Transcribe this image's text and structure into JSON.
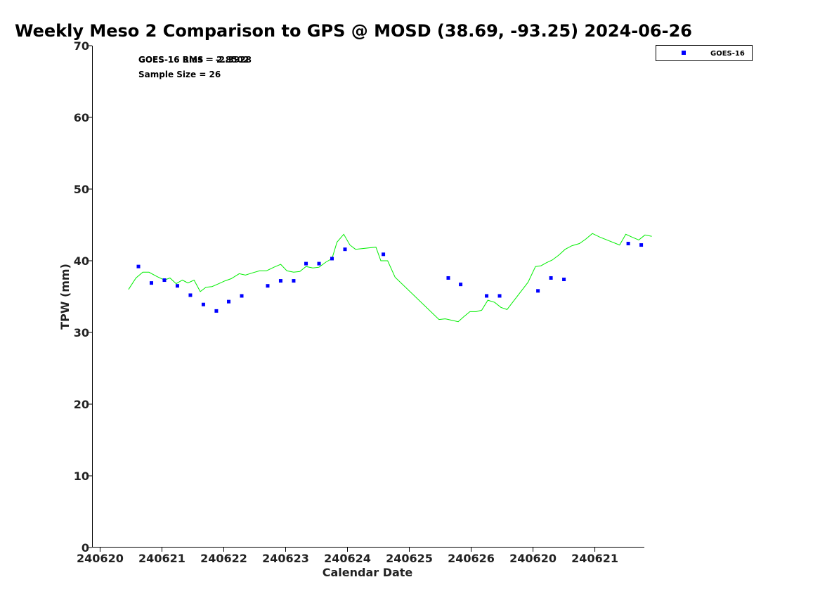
{
  "chart_data": {
    "type": "scatter",
    "title": "Weekly Meso 2 Comparison to GPS @ MOSD (38.69, -93.25) 2024-06-26",
    "xlabel": "Calendar Date",
    "ylabel": "TPW (mm)",
    "ylim": [
      0,
      70
    ],
    "xlim": [
      -0.13,
      8.8
    ],
    "yticks": [
      0,
      10,
      20,
      30,
      40,
      50,
      60,
      70
    ],
    "xticks": [
      {
        "x": 0,
        "label": "240620"
      },
      {
        "x": 1,
        "label": "240621"
      },
      {
        "x": 2,
        "label": "240622"
      },
      {
        "x": 3,
        "label": "240623"
      },
      {
        "x": 4,
        "label": "240624"
      },
      {
        "x": 5,
        "label": "240625"
      },
      {
        "x": 6,
        "label": "240626"
      },
      {
        "x": 7,
        "label": "240620"
      },
      {
        "x": 8,
        "label": "240621"
      }
    ],
    "grid": false,
    "legend_position": "top-right",
    "annotations": {
      "stat_line_a": "GOES-16 Bias = -2.3928",
      "stat_line_b": "GOES-16 RMS = 2.8502",
      "sample_size": "Sample Size = 26"
    },
    "series": [
      {
        "name": "GOES-16",
        "kind": "scatter",
        "color": "#0000ff",
        "x": [
          0.62,
          0.83,
          1.04,
          1.25,
          1.46,
          1.67,
          1.88,
          2.08,
          2.29,
          2.71,
          2.92,
          3.13,
          3.33,
          3.54,
          3.75,
          3.96,
          4.58,
          5.63,
          5.83,
          6.25,
          6.46,
          7.08,
          7.29,
          7.5,
          8.54,
          8.75
        ],
        "y": [
          39.2,
          36.9,
          37.3,
          36.5,
          35.2,
          33.9,
          33.0,
          34.3,
          35.1,
          36.5,
          37.2,
          37.2,
          39.6,
          39.6,
          40.3,
          41.6,
          40.9,
          37.6,
          36.7,
          35.1,
          35.1,
          35.8,
          37.6,
          37.4,
          42.4,
          42.2
        ]
      },
      {
        "kind": "line",
        "color": "#00ee00",
        "x": [
          0.46,
          0.58,
          0.69,
          0.79,
          0.92,
          1.04,
          1.13,
          1.23,
          1.33,
          1.42,
          1.52,
          1.62,
          1.71,
          1.81,
          1.92,
          2.02,
          2.12,
          2.25,
          2.35,
          2.46,
          2.58,
          2.69,
          2.81,
          2.92,
          3.02,
          3.13,
          3.23,
          3.33,
          3.44,
          3.54,
          3.65,
          3.75,
          3.83,
          3.94,
          4.04,
          4.13,
          4.46,
          4.54,
          4.65,
          4.77,
          5.48,
          5.58,
          5.69,
          5.79,
          5.88,
          5.98,
          6.08,
          6.17,
          6.27,
          6.38,
          6.48,
          6.58,
          6.92,
          7.04,
          7.13,
          7.21,
          7.31,
          7.42,
          7.52,
          7.63,
          7.75,
          7.85,
          7.96,
          8.08,
          8.4,
          8.5,
          8.6,
          8.71,
          8.81,
          8.92
        ],
        "y": [
          36.0,
          37.6,
          38.4,
          38.4,
          37.8,
          37.3,
          37.6,
          36.8,
          37.3,
          36.9,
          37.3,
          35.7,
          36.3,
          36.4,
          36.8,
          37.2,
          37.5,
          38.2,
          38.0,
          38.3,
          38.6,
          38.6,
          39.1,
          39.5,
          38.6,
          38.4,
          38.5,
          39.2,
          39.0,
          39.1,
          39.8,
          40.3,
          42.6,
          43.7,
          42.2,
          41.6,
          41.9,
          40.0,
          40.0,
          37.7,
          31.8,
          31.9,
          31.7,
          31.5,
          32.2,
          32.9,
          32.9,
          33.1,
          34.5,
          34.2,
          33.5,
          33.2,
          37.0,
          39.2,
          39.3,
          39.7,
          40.1,
          40.8,
          41.6,
          42.1,
          42.4,
          43.0,
          43.8,
          43.3,
          42.2,
          43.7,
          43.3,
          42.9,
          43.6,
          43.4
        ]
      }
    ]
  }
}
